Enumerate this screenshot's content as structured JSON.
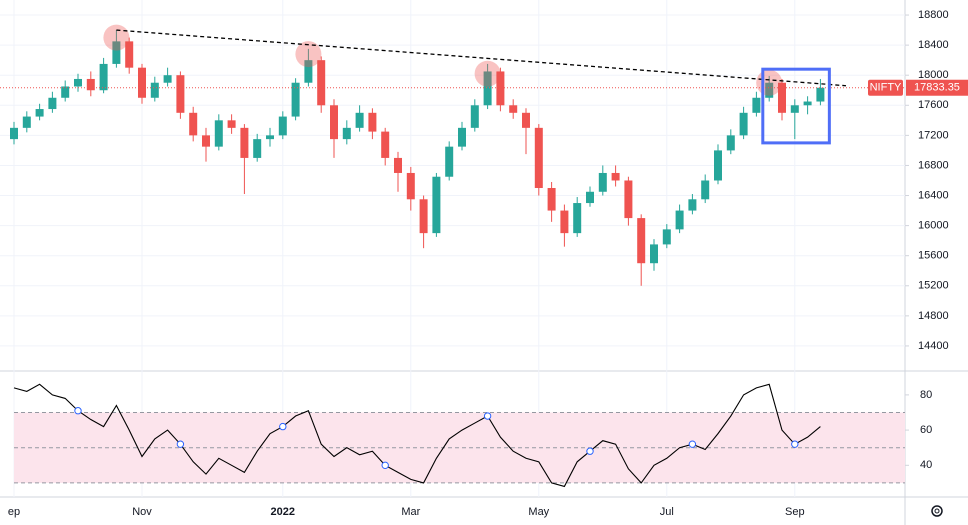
{
  "chart_data": {
    "type": "candlestick",
    "categories": [
      "ep",
      null,
      null,
      null,
      null,
      null,
      null,
      null,
      null,
      null,
      "Nov",
      null,
      null,
      null,
      null,
      null,
      null,
      null,
      null,
      null,
      null,
      "2022",
      null,
      null,
      null,
      null,
      null,
      null,
      null,
      null,
      null,
      "Mar",
      null,
      null,
      null,
      null,
      null,
      null,
      null,
      null,
      null,
      "May",
      null,
      null,
      null,
      null,
      null,
      null,
      null,
      null,
      null,
      "Jul",
      null,
      null,
      null,
      null,
      null,
      null,
      null,
      null,
      null,
      "Sep",
      null,
      null
    ],
    "series": [
      {
        "name": "NIFTY",
        "up_color": "#26a69a",
        "down_color": "#ef5350",
        "open": [
          17150,
          17300,
          17450,
          17550,
          17700,
          17850,
          17950,
          17800,
          18150,
          18450,
          18100,
          17700,
          17900,
          18000,
          17500,
          17200,
          17050,
          17400,
          17300,
          16900,
          17150,
          17200,
          17450,
          17900,
          18200,
          17600,
          17150,
          17300,
          17500,
          17250,
          16900,
          16700,
          16350,
          15900,
          16650,
          17050,
          17300,
          17600,
          18050,
          17600,
          17500,
          17300,
          16500,
          16200,
          15900,
          16300,
          16450,
          16700,
          16600,
          16100,
          15500,
          15750,
          15950,
          16200,
          16350,
          16600,
          17000,
          17200,
          17500,
          17700,
          17900,
          17500,
          17600,
          17650
        ],
        "high": [
          17380,
          17520,
          17620,
          17780,
          17930,
          18020,
          18050,
          18230,
          18600,
          18500,
          18150,
          17980,
          18100,
          18050,
          17580,
          17300,
          17480,
          17480,
          17350,
          17220,
          17300,
          17520,
          17960,
          18350,
          18250,
          17680,
          17400,
          17600,
          17560,
          17300,
          16980,
          16780,
          16400,
          16700,
          17120,
          17380,
          17680,
          18150,
          18100,
          17680,
          17560,
          17350,
          16580,
          16280,
          16380,
          16520,
          16800,
          16800,
          16650,
          16150,
          15820,
          16020,
          16280,
          16420,
          16680,
          17080,
          17280,
          17580,
          17780,
          17990,
          17950,
          17680,
          17720,
          17950
        ],
        "low": [
          17080,
          17240,
          17400,
          17500,
          17650,
          17780,
          17720,
          17760,
          18100,
          18020,
          17620,
          17650,
          17850,
          17420,
          17120,
          16850,
          17000,
          17220,
          16420,
          16850,
          17050,
          17150,
          17400,
          17850,
          17500,
          16900,
          17080,
          17250,
          17150,
          16800,
          16450,
          16200,
          15700,
          15850,
          16600,
          17000,
          17250,
          17550,
          17520,
          17420,
          16950,
          16400,
          16050,
          15720,
          15850,
          16250,
          16400,
          16520,
          16000,
          15200,
          15400,
          15700,
          15900,
          16150,
          16300,
          16550,
          16950,
          17150,
          17450,
          17650,
          17400,
          17150,
          17480,
          17600
        ],
        "close": [
          17300,
          17450,
          17550,
          17700,
          17850,
          17950,
          17800,
          18150,
          18450,
          18100,
          17700,
          17900,
          18000,
          17500,
          17200,
          17050,
          17400,
          17300,
          16900,
          17150,
          17200,
          17450,
          17900,
          18200,
          17600,
          17150,
          17300,
          17500,
          17250,
          16900,
          16700,
          16350,
          15900,
          16650,
          17050,
          17300,
          17600,
          18050,
          17600,
          17500,
          17300,
          16500,
          16200,
          15900,
          16300,
          16450,
          16700,
          16600,
          16100,
          15500,
          15750,
          15950,
          16200,
          16350,
          16600,
          17000,
          17200,
          17500,
          17700,
          17900,
          17500,
          17600,
          17650,
          17833.35
        ]
      }
    ],
    "ylim": [
      14080,
      19000
    ],
    "yticks": [
      14400,
      14800,
      15200,
      15600,
      16000,
      16400,
      16800,
      17200,
      17600,
      18000,
      18400,
      18800
    ],
    "last_price_color": "#ef5350",
    "trendline": {
      "x": [
        8,
        65
      ],
      "y": [
        18600,
        17860
      ],
      "color": "#000000"
    },
    "highlights": {
      "x": [
        8,
        23,
        37,
        59
      ],
      "y": [
        18500,
        18280,
        18020,
        17900
      ],
      "color": "#ef5350"
    },
    "box": {
      "x": [
        58.5,
        63.7
      ],
      "y": [
        17100,
        18080
      ],
      "color": "#4f6ef7"
    },
    "rsi": {
      "values": [
        84,
        82,
        86,
        80,
        78,
        71,
        66,
        62,
        74,
        60,
        45,
        55,
        60,
        52,
        42,
        35,
        44,
        40,
        36,
        48,
        58,
        62,
        68,
        71,
        52,
        45,
        50,
        46,
        48,
        40,
        36,
        32,
        30,
        44,
        55,
        60,
        64,
        68,
        56,
        48,
        44,
        42,
        30,
        28,
        42,
        48,
        54,
        52,
        38,
        30,
        40,
        44,
        50,
        52,
        49,
        58,
        68,
        80,
        84,
        86,
        60,
        52,
        56,
        62
      ],
      "ylim": [
        22,
        93
      ],
      "yticks": [
        40,
        60,
        80
      ],
      "bands": [
        30,
        50,
        70
      ],
      "markers": [
        5,
        13,
        21,
        29,
        37,
        45,
        53,
        61
      ],
      "color": "#000000",
      "band_fill": "#fce4ec"
    },
    "grid": true
  }
}
